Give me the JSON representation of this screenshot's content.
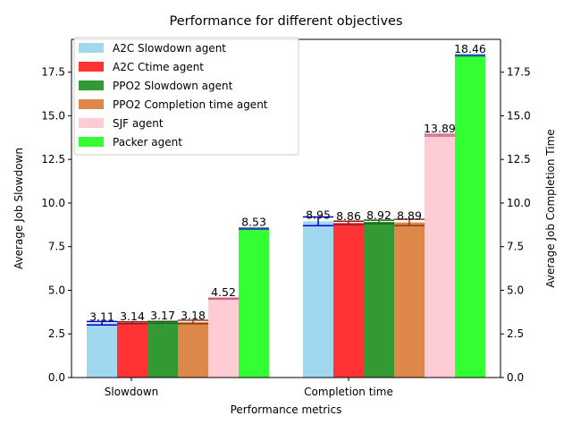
{
  "chart_data": {
    "type": "bar",
    "title": "Performance for different objectives",
    "xlabel": "Performance metrics",
    "ylabel": "Average Job Slowdown",
    "ylabel_right": "Average Job Completion Time",
    "categories": [
      "Slowdown",
      "Completion time"
    ],
    "ylim": [
      0,
      19.38
    ],
    "y_ticks": [
      "0.0",
      "2.5",
      "5.0",
      "7.5",
      "10.0",
      "12.5",
      "15.0",
      "17.5"
    ],
    "legend_position": "upper-left",
    "grid": false,
    "series": [
      {
        "name": "A2C Slowdown agent",
        "color": "#a0d8ef",
        "err_color": "#0000cc",
        "values": [
          3.11,
          8.95
        ],
        "errors": [
          0.1,
          0.25
        ]
      },
      {
        "name": "A2C Ctime agent",
        "color": "#ff3333",
        "err_color": "#8b1a1a",
        "values": [
          3.14,
          8.86
        ],
        "errors": [
          0.05,
          0.1
        ]
      },
      {
        "name": "PPO2 Slowdown agent",
        "color": "#339933",
        "err_color": "#1a5e1a",
        "values": [
          3.17,
          8.92
        ],
        "errors": [
          0.05,
          0.1
        ]
      },
      {
        "name": "PPO2 Completion time agent",
        "color": "#dd884a",
        "err_color": "#8b3a1a",
        "values": [
          3.18,
          8.89
        ],
        "errors": [
          0.1,
          0.18
        ]
      },
      {
        "name": "SJF agent",
        "color": "#ffccd5",
        "err_color": "#cc6688",
        "values": [
          4.52,
          13.89
        ],
        "errors": [
          0.03,
          0.05
        ]
      },
      {
        "name": "Packer agent",
        "color": "#33ff33",
        "err_color": "#2255aa",
        "values": [
          8.53,
          18.46
        ],
        "errors": [
          0.03,
          0.03
        ]
      }
    ]
  }
}
